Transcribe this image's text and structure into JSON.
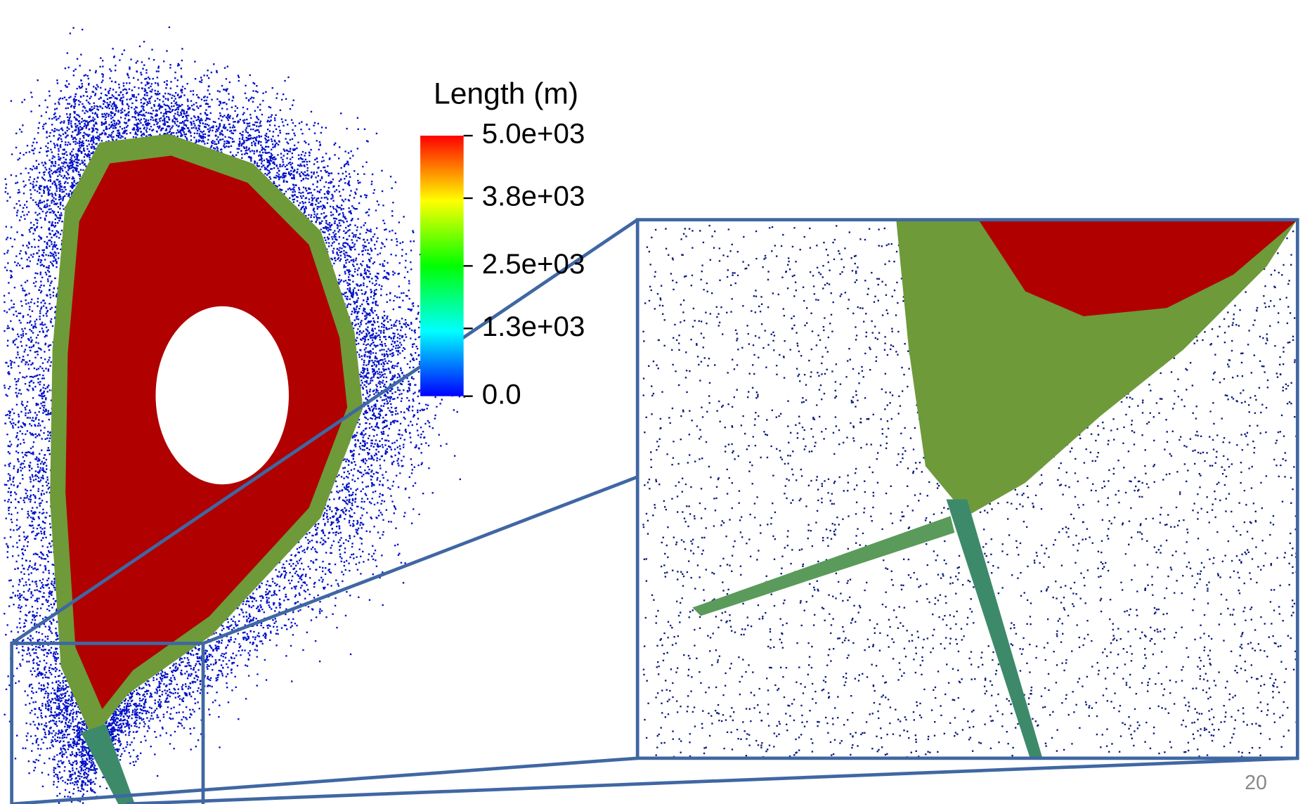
{
  "chart_data": {
    "type": "heatmap",
    "title": "Length (m)",
    "clim": [
      0,
      5000
    ],
    "cticks": [
      {
        "value": 5000,
        "label": "5.0e+03"
      },
      {
        "value": 3800,
        "label": "3.8e+03"
      },
      {
        "value": 2500,
        "label": "2.5e+03"
      },
      {
        "value": 1300,
        "label": "1.3e+03"
      },
      {
        "value": 0,
        "label": "0.0"
      }
    ],
    "colormap": [
      "#0000ff",
      "#00ffff",
      "#00ff00",
      "#ffff00",
      "#ff0000"
    ]
  },
  "slide_number": "20"
}
